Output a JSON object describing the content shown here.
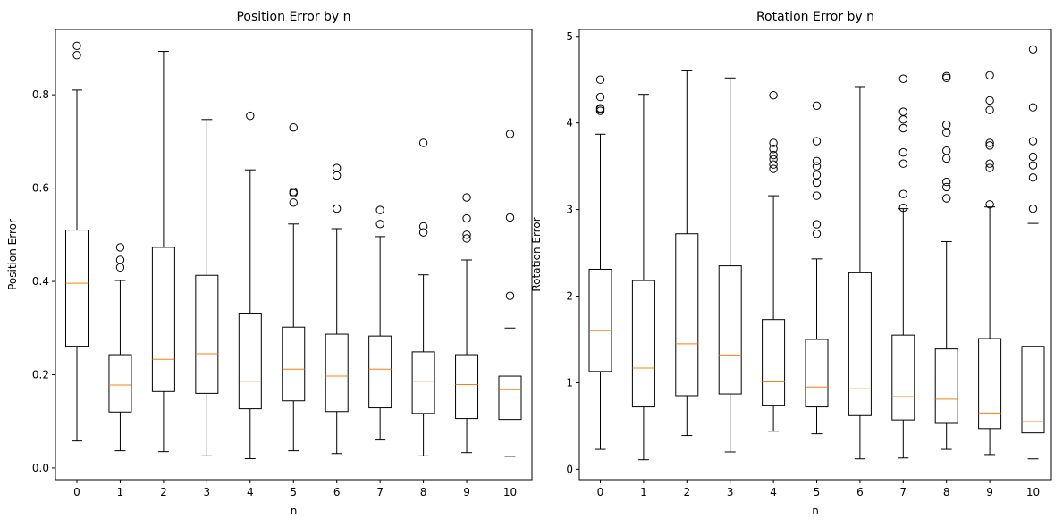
{
  "chart_data": [
    {
      "type": "box",
      "title": "Position Error by n",
      "xlabel": "n",
      "ylabel": "Position Error",
      "categories": [
        "0",
        "1",
        "2",
        "3",
        "4",
        "5",
        "6",
        "7",
        "8",
        "9",
        "10"
      ],
      "ylim": [
        -0.025,
        0.94
      ],
      "yticks": [
        "0.0",
        "0.2",
        "0.4",
        "0.6",
        "0.8"
      ],
      "ytick_values": [
        0.0,
        0.2,
        0.4,
        0.6,
        0.8
      ],
      "boxes": [
        {
          "whisker_low": 0.058,
          "q1": 0.261,
          "median": 0.396,
          "q3": 0.51,
          "whisker_high": 0.81,
          "fliers": [
            0.885,
            0.905
          ]
        },
        {
          "whisker_low": 0.037,
          "q1": 0.12,
          "median": 0.178,
          "q3": 0.243,
          "whisker_high": 0.402,
          "fliers": [
            0.43,
            0.446,
            0.473
          ]
        },
        {
          "whisker_low": 0.035,
          "q1": 0.164,
          "median": 0.233,
          "q3": 0.473,
          "whisker_high": 0.893,
          "fliers": []
        },
        {
          "whisker_low": 0.026,
          "q1": 0.16,
          "median": 0.245,
          "q3": 0.413,
          "whisker_high": 0.747,
          "fliers": []
        },
        {
          "whisker_low": 0.02,
          "q1": 0.127,
          "median": 0.186,
          "q3": 0.332,
          "whisker_high": 0.639,
          "fliers": [
            0.755
          ]
        },
        {
          "whisker_low": 0.037,
          "q1": 0.144,
          "median": 0.212,
          "q3": 0.302,
          "whisker_high": 0.523,
          "fliers": [
            0.569,
            0.589,
            0.592,
            0.73
          ]
        },
        {
          "whisker_low": 0.031,
          "q1": 0.121,
          "median": 0.197,
          "q3": 0.287,
          "whisker_high": 0.513,
          "fliers": [
            0.556,
            0.627,
            0.643
          ]
        },
        {
          "whisker_low": 0.06,
          "q1": 0.129,
          "median": 0.212,
          "q3": 0.283,
          "whisker_high": 0.496,
          "fliers": [
            0.523,
            0.553
          ]
        },
        {
          "whisker_low": 0.026,
          "q1": 0.117,
          "median": 0.186,
          "q3": 0.249,
          "whisker_high": 0.414,
          "fliers": [
            0.505,
            0.518,
            0.697
          ]
        },
        {
          "whisker_low": 0.033,
          "q1": 0.106,
          "median": 0.179,
          "q3": 0.243,
          "whisker_high": 0.446,
          "fliers": [
            0.492,
            0.5,
            0.535,
            0.58
          ]
        },
        {
          "whisker_low": 0.025,
          "q1": 0.104,
          "median": 0.168,
          "q3": 0.197,
          "whisker_high": 0.3,
          "fliers": [
            0.369,
            0.537,
            0.716
          ]
        }
      ]
    },
    {
      "type": "box",
      "title": "Rotation Error by n",
      "xlabel": "n",
      "ylabel": "Rotation Error",
      "categories": [
        "0",
        "1",
        "2",
        "3",
        "4",
        "5",
        "6",
        "7",
        "8",
        "9",
        "10"
      ],
      "ylim": [
        -0.12,
        5.08
      ],
      "yticks": [
        "0",
        "1",
        "2",
        "3",
        "4",
        "5"
      ],
      "ytick_values": [
        0,
        1,
        2,
        3,
        4,
        5
      ],
      "boxes": [
        {
          "whisker_low": 0.23,
          "q1": 1.13,
          "median": 1.6,
          "q3": 2.31,
          "whisker_high": 3.87,
          "fliers": [
            4.14,
            4.16,
            4.17,
            4.3,
            4.5
          ]
        },
        {
          "whisker_low": 0.11,
          "q1": 0.72,
          "median": 1.17,
          "q3": 2.18,
          "whisker_high": 4.33,
          "fliers": []
        },
        {
          "whisker_low": 0.39,
          "q1": 0.85,
          "median": 1.45,
          "q3": 2.72,
          "whisker_high": 4.61,
          "fliers": []
        },
        {
          "whisker_low": 0.2,
          "q1": 0.87,
          "median": 1.32,
          "q3": 2.35,
          "whisker_high": 4.52,
          "fliers": []
        },
        {
          "whisker_low": 0.44,
          "q1": 0.74,
          "median": 1.01,
          "q3": 1.73,
          "whisker_high": 3.16,
          "fliers": [
            3.47,
            3.52,
            3.58,
            3.63,
            3.7,
            3.77,
            4.32
          ]
        },
        {
          "whisker_low": 0.41,
          "q1": 0.72,
          "median": 0.95,
          "q3": 1.5,
          "whisker_high": 2.43,
          "fliers": [
            2.72,
            2.83,
            3.16,
            3.31,
            3.4,
            3.5,
            3.56,
            3.79,
            4.2
          ]
        },
        {
          "whisker_low": 0.12,
          "q1": 0.62,
          "median": 0.93,
          "q3": 2.27,
          "whisker_high": 4.42,
          "fliers": []
        },
        {
          "whisker_low": 0.13,
          "q1": 0.57,
          "median": 0.84,
          "q3": 1.55,
          "whisker_high": 3.01,
          "fliers": [
            3.02,
            3.18,
            3.53,
            3.66,
            3.94,
            4.04,
            4.13,
            4.51
          ]
        },
        {
          "whisker_low": 0.23,
          "q1": 0.53,
          "median": 0.81,
          "q3": 1.39,
          "whisker_high": 2.63,
          "fliers": [
            3.13,
            3.26,
            3.32,
            3.59,
            3.68,
            3.89,
            3.98,
            4.52,
            4.54
          ]
        },
        {
          "whisker_low": 0.17,
          "q1": 0.47,
          "median": 0.65,
          "q3": 1.51,
          "whisker_high": 3.03,
          "fliers": [
            3.06,
            3.48,
            3.53,
            3.74,
            3.77,
            4.15,
            4.26,
            4.55
          ]
        },
        {
          "whisker_low": 0.12,
          "q1": 0.42,
          "median": 0.55,
          "q3": 1.42,
          "whisker_high": 2.84,
          "fliers": [
            3.01,
            3.37,
            3.51,
            3.61,
            3.79,
            4.18,
            4.85
          ]
        }
      ]
    }
  ]
}
